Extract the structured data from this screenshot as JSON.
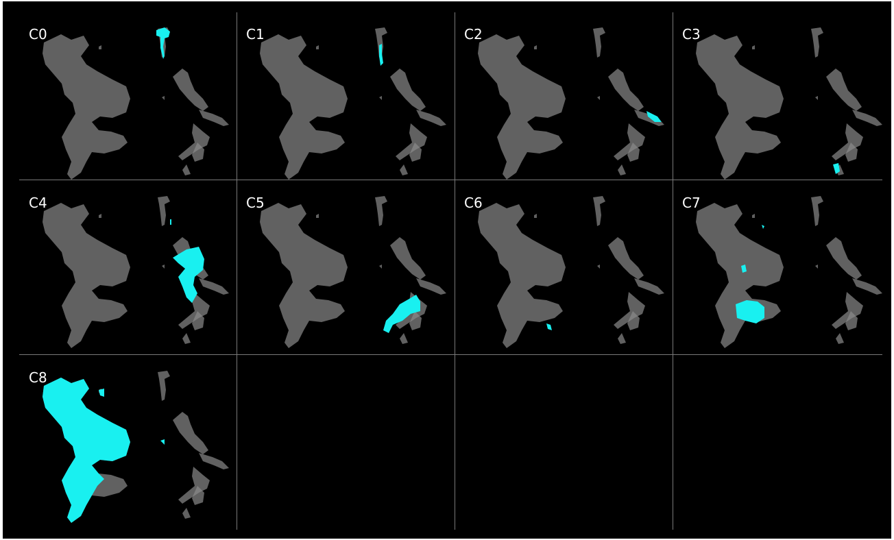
{
  "figure": {
    "background_color": "#000000",
    "base_color": "#8a8a8a",
    "highlight_color": "#19f0f0",
    "empty_panels": 3
  },
  "panels": [
    {
      "label": "C0",
      "highlight": "top-tail",
      "area_fraction": 0.02
    },
    {
      "label": "C1",
      "highlight": "upper-tail-stem",
      "area_fraction": 0.01
    },
    {
      "label": "C2",
      "highlight": "right-spike",
      "area_fraction": 0.01
    },
    {
      "label": "C3",
      "highlight": "lower-right-tip",
      "area_fraction": 0.005
    },
    {
      "label": "C4",
      "highlight": "right-cluster-upper",
      "area_fraction": 0.12
    },
    {
      "label": "C5",
      "highlight": "center-lower-arc",
      "area_fraction": 0.08
    },
    {
      "label": "C6",
      "highlight": "center-lower-tip",
      "area_fraction": 0.005
    },
    {
      "label": "C7",
      "highlight": "center-lower-patch",
      "area_fraction": 0.06
    },
    {
      "label": "C8",
      "highlight": "left-large-mass",
      "area_fraction": 0.45
    }
  ]
}
